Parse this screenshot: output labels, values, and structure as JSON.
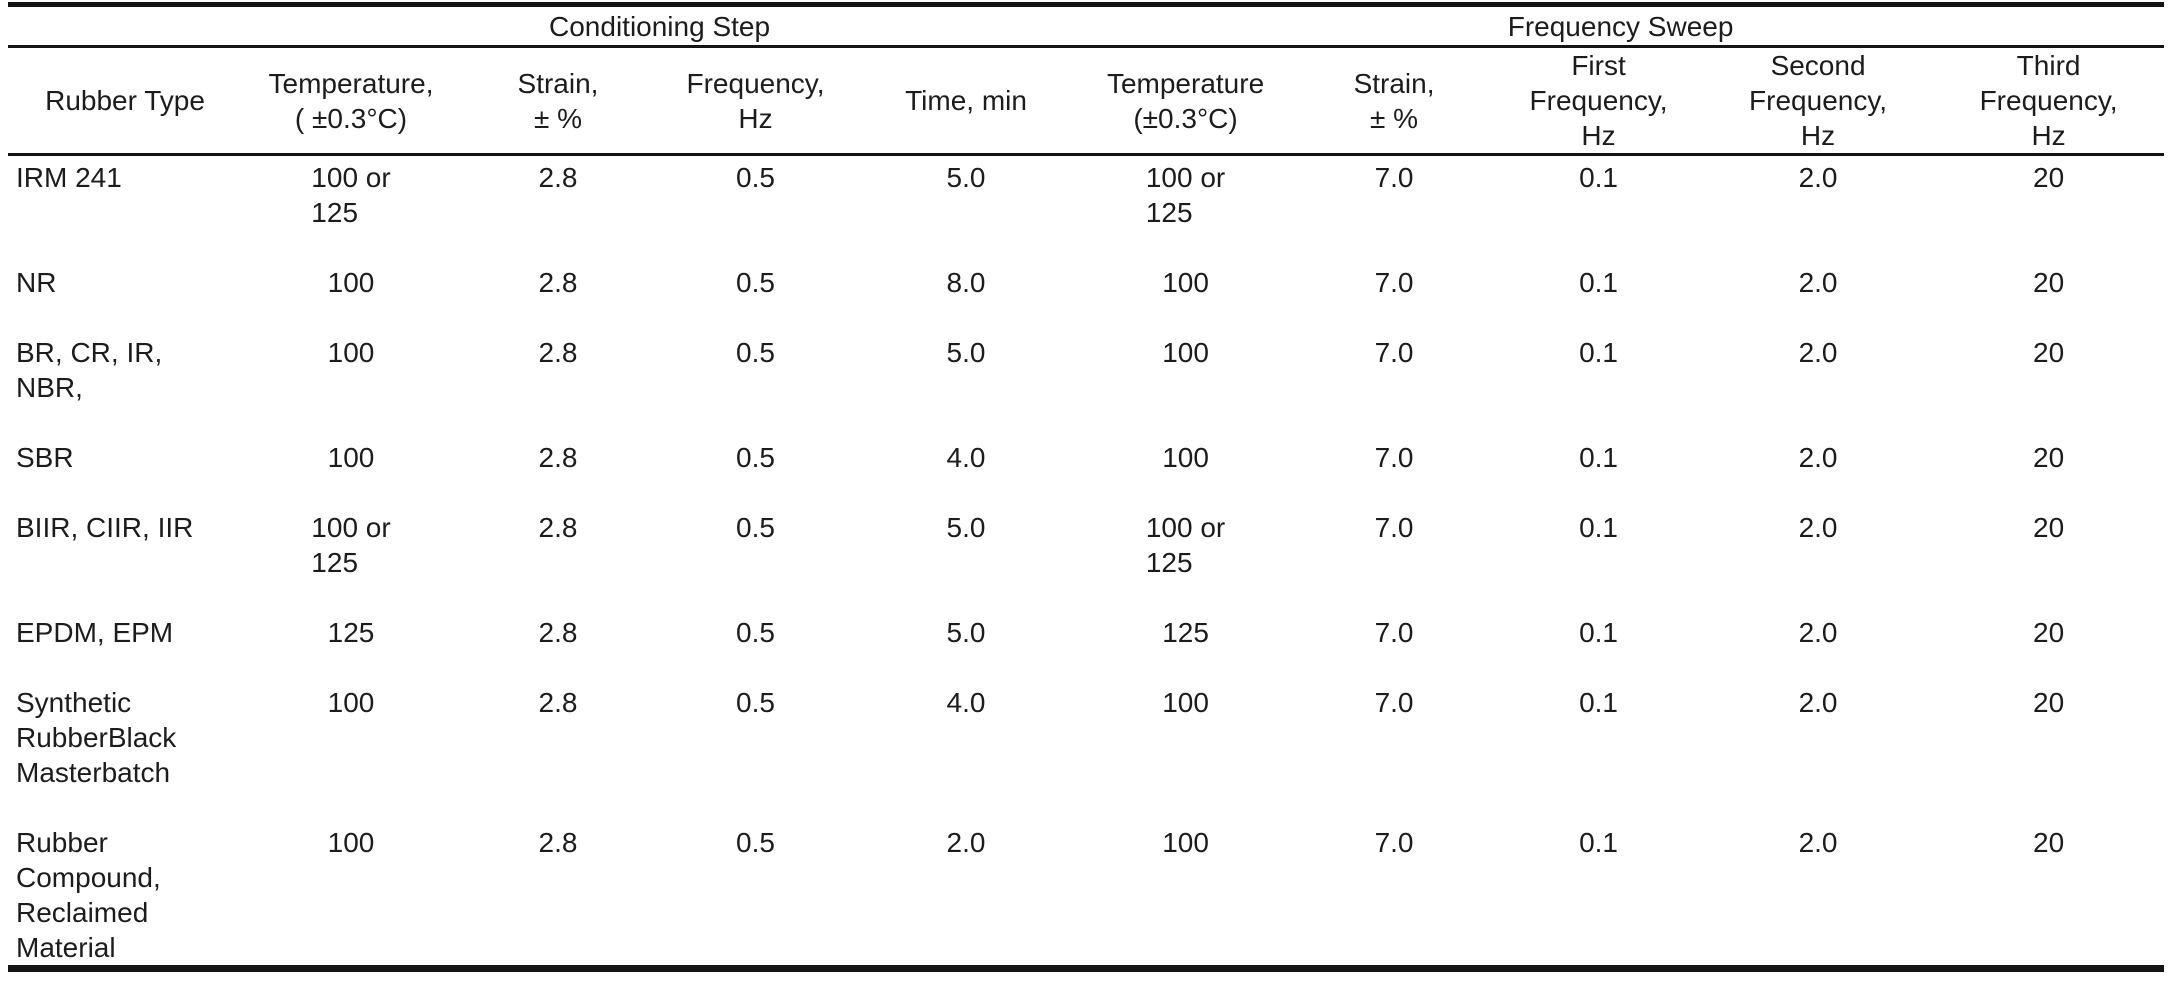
{
  "table": {
    "group_headers": [
      {
        "label": "",
        "colspan": 1
      },
      {
        "label": "Conditioning Step",
        "colspan": 4
      },
      {
        "label": "Frequency Sweep",
        "colspan": 5
      }
    ],
    "columns": [
      "Rubber Type",
      "Temperature,\n( ±0.3°C)",
      "Strain,\n± %",
      "Frequency,\nHz",
      "Time, min",
      "Temperature\n(±0.3°C)",
      "Strain,\n± %",
      "First\nFrequency,\nHz",
      "Second\nFrequency,\nHz",
      "Third\nFrequency,\nHz"
    ],
    "rows": [
      [
        "IRM 241",
        "100 or\n125",
        "2.8",
        "0.5",
        "5.0",
        "100 or\n125",
        "7.0",
        "0.1",
        "2.0",
        "20"
      ],
      [
        "NR",
        "100",
        "2.8",
        "0.5",
        "8.0",
        "100",
        "7.0",
        "0.1",
        "2.0",
        "20"
      ],
      [
        "BR, CR, IR,\nNBR,",
        "100",
        "2.8",
        "0.5",
        "5.0",
        "100",
        "7.0",
        "0.1",
        "2.0",
        "20"
      ],
      [
        "SBR",
        "100",
        "2.8",
        "0.5",
        "4.0",
        "100",
        "7.0",
        "0.1",
        "2.0",
        "20"
      ],
      [
        "BIIR, CIIR, IIR",
        "100 or\n125",
        "2.8",
        "0.5",
        "5.0",
        "100 or\n125",
        "7.0",
        "0.1",
        "2.0",
        "20"
      ],
      [
        "EPDM, EPM",
        "125",
        "2.8",
        "0.5",
        "5.0",
        "125",
        "7.0",
        "0.1",
        "2.0",
        "20"
      ],
      [
        "Synthetic\nRubberBlack\nMasterbatch",
        "100",
        "2.8",
        "0.5",
        "4.0",
        "100",
        "7.0",
        "0.1",
        "2.0",
        "20"
      ],
      [
        "Rubber\nCompound,\nReclaimed\nMaterial",
        "100",
        "2.8",
        "0.5",
        "2.0",
        "100",
        "7.0",
        "0.1",
        "2.0",
        "20"
      ]
    ],
    "colors": {
      "text": "#1c1c1c",
      "rule": "#141414",
      "background": "#ffffff"
    }
  }
}
